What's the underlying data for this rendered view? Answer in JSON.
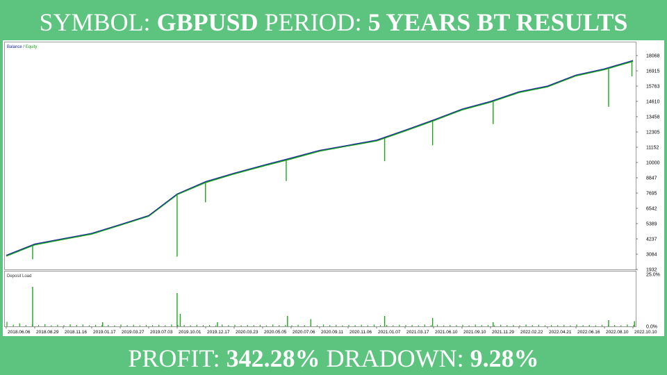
{
  "header": {
    "symbol_label": "SYMBOL:",
    "symbol": "GBPUSD",
    "period_label": "PERIOD:",
    "period": "5 YEARS BT RESULTS"
  },
  "footer": {
    "profit_label": "PROFIT:",
    "profit": "342.28%",
    "drawdown_label": "DRADOWN:",
    "drawdown": "9.28%"
  },
  "colors": {
    "background": "#5cc47e",
    "balance": "#1c2a9c",
    "equity": "#1aa81a",
    "deposit_load": "#1aa81a"
  },
  "chart_data": [
    {
      "type": "line",
      "legend": [
        "Balance",
        "Equity"
      ],
      "y_ticks": [
        "18068",
        "16915",
        "15763",
        "14610",
        "13458",
        "12305",
        "11152",
        "10000",
        "8847",
        "7695",
        "6542",
        "5389",
        "4237",
        "3084",
        "1932"
      ],
      "ylim": [
        1932,
        18068
      ],
      "x": [
        "2018.06.06",
        "2018.08.29",
        "2018.11.16",
        "2019.01.17",
        "2019.03.27",
        "2019.07.03",
        "2019.10.01",
        "2019.12.17",
        "2020.03.23",
        "2020.05.05",
        "2020.07.06",
        "2020.09.11",
        "2020.11.06",
        "2021.01.07",
        "2021.03.17",
        "2021.06.10",
        "2021.09.10",
        "2021.11.29",
        "2022.02.22",
        "2022.04.21",
        "2022.06.16",
        "2022.08.10",
        "2022.10.10"
      ],
      "series": [
        {
          "name": "Balance",
          "values": [
            3000,
            3850,
            4260,
            4660,
            5320,
            6000,
            7630,
            8560,
            9200,
            9780,
            10340,
            10920,
            11300,
            11690,
            12440,
            13210,
            14030,
            14610,
            15340,
            15770,
            16600,
            17070,
            17700
          ]
        },
        {
          "name": "Equity",
          "values": [
            2950,
            3800,
            4210,
            4610,
            5280,
            5960,
            7590,
            8500,
            9150,
            9730,
            10280,
            10870,
            11260,
            11640,
            12390,
            13160,
            13980,
            14560,
            15290,
            15720,
            16550,
            17020,
            17640
          ]
        }
      ],
      "grid": false
    },
    {
      "type": "bar",
      "title": "Deposit Load",
      "y_ticks": [
        "25.0%",
        "0.0%"
      ],
      "ylim": [
        0,
        25
      ],
      "values": [
        2.2,
        0.8,
        1.5,
        0.6,
        0.9,
        0.7,
        1.1,
        0.5,
        0.8,
        0.6,
        1.0,
        0.7,
        0.9,
        0.5,
        0.8,
        0.6,
        0.7,
        0.5,
        0.9,
        0.6,
        0.8,
        0.5,
        0.7,
        0.6,
        0.8,
        0.5,
        0.9,
        0.6,
        0.7,
        0.5,
        0.8,
        0.6,
        0.7,
        0.5,
        0.9,
        0.6,
        0.8,
        0.5,
        0.7,
        0.6,
        0.8,
        0.5,
        0.9,
        0.6,
        0.7,
        0.5,
        0.8,
        0.6,
        0.7,
        0.5,
        0.9,
        0.6,
        0.8,
        0.5,
        0.7,
        0.6,
        0.8,
        0.5,
        0.9,
        0.6,
        0.7,
        0.5,
        0.8,
        0.6,
        0.7,
        0.5,
        0.9,
        0.6,
        0.8,
        0.5,
        0.7,
        0.6,
        0.8,
        0.5,
        0.9,
        0.6,
        0.7,
        0.5,
        0.8,
        0.6,
        0.7,
        0.5,
        0.9,
        0.6,
        0.8,
        0.5,
        0.7,
        0.6,
        0.8,
        0.5,
        0.9,
        0.6,
        0.7,
        0.5,
        0.8,
        0.6,
        0.7,
        0.5,
        0.9,
        0.6
      ],
      "spikes": [
        {
          "at": 0.044,
          "value": 19.0
        },
        {
          "at": 0.273,
          "value": 16.0
        },
        {
          "at": 0.278,
          "value": 6.0
        },
        {
          "at": 0.448,
          "value": 5.0
        },
        {
          "at": 0.485,
          "value": 3.5
        },
        {
          "at": 0.602,
          "value": 5.0
        },
        {
          "at": 0.678,
          "value": 4.0
        },
        {
          "at": 0.774,
          "value": 2.0
        },
        {
          "at": 0.957,
          "value": 3.0
        },
        {
          "at": 0.998,
          "value": 2.5
        },
        {
          "at": 0.155,
          "value": 2.0
        },
        {
          "at": 0.337,
          "value": 2.0
        }
      ]
    }
  ]
}
